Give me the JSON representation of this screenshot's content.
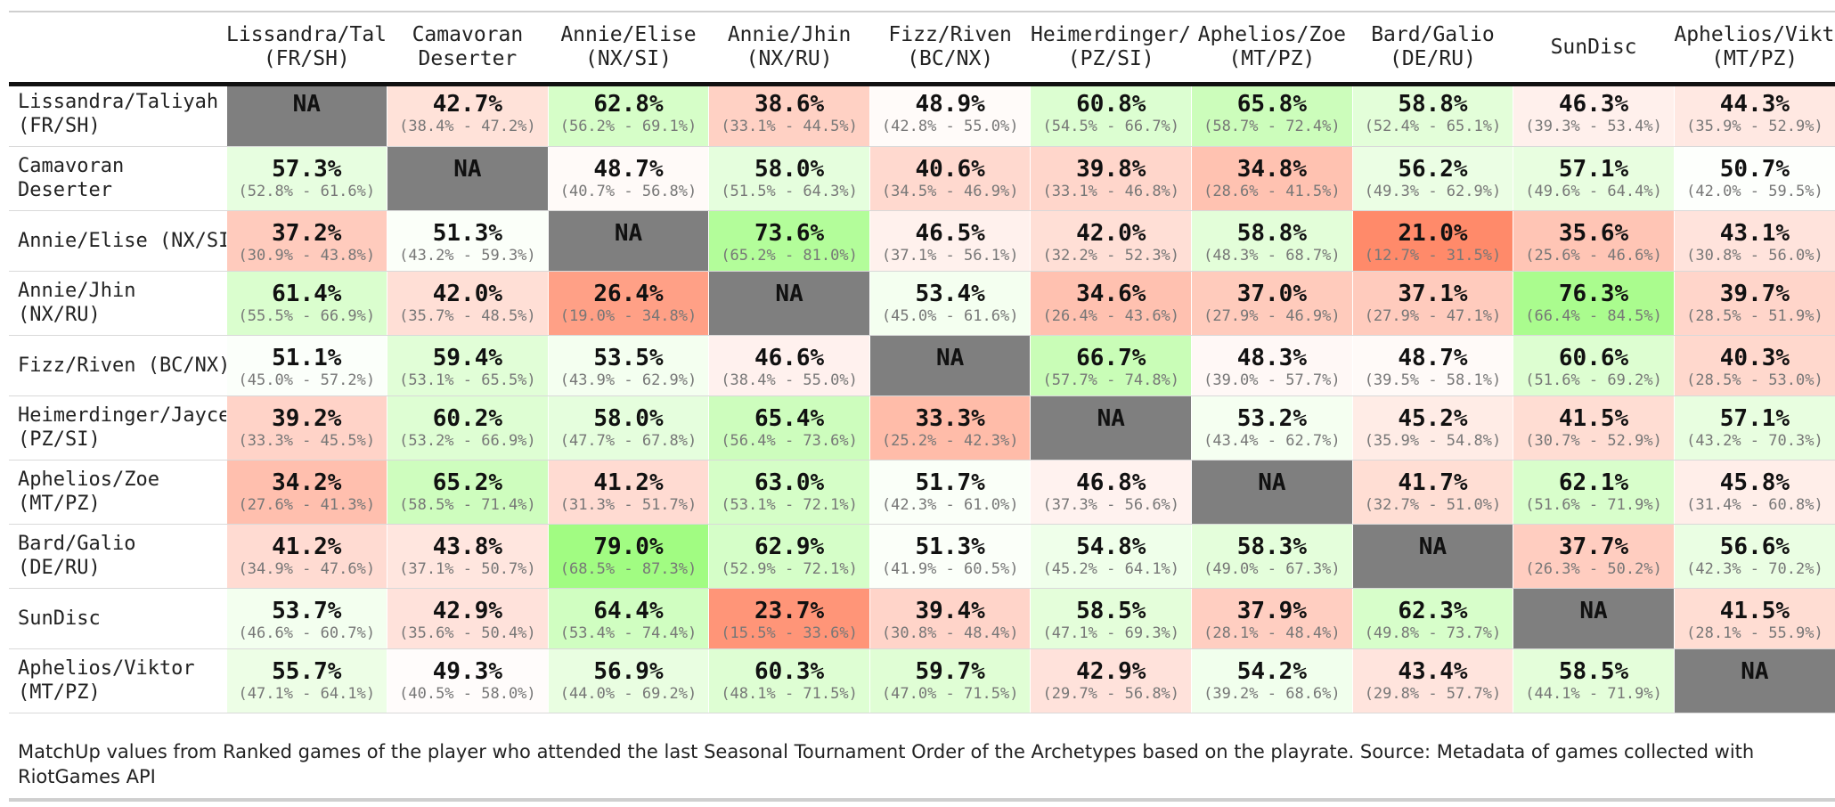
{
  "chart_data": {
    "type": "table",
    "title": "",
    "columns": [
      {
        "line1": "Lissandra/Taliyah",
        "line2": "(FR/SH)"
      },
      {
        "line1": "Camavoran",
        "line2": "Deserter"
      },
      {
        "line1": "Annie/Elise",
        "line2": "(NX/SI)"
      },
      {
        "line1": "Annie/Jhin",
        "line2": "(NX/RU)"
      },
      {
        "line1": "Fizz/Riven",
        "line2": "(BC/NX)"
      },
      {
        "line1": "Heimerdinger/Jayce",
        "line2": "(PZ/SI)"
      },
      {
        "line1": "Aphelios/Zoe",
        "line2": "(MT/PZ)"
      },
      {
        "line1": "Bard/Galio",
        "line2": "(DE/RU)"
      },
      {
        "line1": "SunDisc",
        "line2": ""
      },
      {
        "line1": "Aphelios/Viktor",
        "line2": "(MT/PZ)"
      }
    ],
    "rows": [
      {
        "label": [
          "Lissandra/Taliyah",
          "(FR/SH)"
        ],
        "cells": [
          {
            "value": null,
            "text": "NA",
            "ci": ""
          },
          {
            "value": 42.7,
            "text": "42.7%",
            "ci": "(38.4% - 47.2%)"
          },
          {
            "value": 62.8,
            "text": "62.8%",
            "ci": "(56.2% - 69.1%)"
          },
          {
            "value": 38.6,
            "text": "38.6%",
            "ci": "(33.1% - 44.5%)"
          },
          {
            "value": 48.9,
            "text": "48.9%",
            "ci": "(42.8% - 55.0%)"
          },
          {
            "value": 60.8,
            "text": "60.8%",
            "ci": "(54.5% - 66.7%)"
          },
          {
            "value": 65.8,
            "text": "65.8%",
            "ci": "(58.7% - 72.4%)"
          },
          {
            "value": 58.8,
            "text": "58.8%",
            "ci": "(52.4% - 65.1%)"
          },
          {
            "value": 46.3,
            "text": "46.3%",
            "ci": "(39.3% - 53.4%)"
          },
          {
            "value": 44.3,
            "text": "44.3%",
            "ci": "(35.9% - 52.9%)"
          }
        ]
      },
      {
        "label": [
          "Camavoran",
          "Deserter"
        ],
        "cells": [
          {
            "value": 57.3,
            "text": "57.3%",
            "ci": "(52.8% - 61.6%)"
          },
          {
            "value": null,
            "text": "NA",
            "ci": ""
          },
          {
            "value": 48.7,
            "text": "48.7%",
            "ci": "(40.7% - 56.8%)"
          },
          {
            "value": 58.0,
            "text": "58.0%",
            "ci": "(51.5% - 64.3%)"
          },
          {
            "value": 40.6,
            "text": "40.6%",
            "ci": "(34.5% - 46.9%)"
          },
          {
            "value": 39.8,
            "text": "39.8%",
            "ci": "(33.1% - 46.8%)"
          },
          {
            "value": 34.8,
            "text": "34.8%",
            "ci": "(28.6% - 41.5%)"
          },
          {
            "value": 56.2,
            "text": "56.2%",
            "ci": "(49.3% - 62.9%)"
          },
          {
            "value": 57.1,
            "text": "57.1%",
            "ci": "(49.6% - 64.4%)"
          },
          {
            "value": 50.7,
            "text": "50.7%",
            "ci": "(42.0% - 59.5%)"
          }
        ]
      },
      {
        "label": [
          "Annie/Elise (NX/SI)"
        ],
        "cells": [
          {
            "value": 37.2,
            "text": "37.2%",
            "ci": "(30.9% - 43.8%)"
          },
          {
            "value": 51.3,
            "text": "51.3%",
            "ci": "(43.2% - 59.3%)"
          },
          {
            "value": null,
            "text": "NA",
            "ci": ""
          },
          {
            "value": 73.6,
            "text": "73.6%",
            "ci": "(65.2% - 81.0%)"
          },
          {
            "value": 46.5,
            "text": "46.5%",
            "ci": "(37.1% - 56.1%)"
          },
          {
            "value": 42.0,
            "text": "42.0%",
            "ci": "(32.2% - 52.3%)"
          },
          {
            "value": 58.8,
            "text": "58.8%",
            "ci": "(48.3% - 68.7%)"
          },
          {
            "value": 21.0,
            "text": "21.0%",
            "ci": "(12.7% - 31.5%)"
          },
          {
            "value": 35.6,
            "text": "35.6%",
            "ci": "(25.6% - 46.6%)"
          },
          {
            "value": 43.1,
            "text": "43.1%",
            "ci": "(30.8% - 56.0%)"
          }
        ]
      },
      {
        "label": [
          "Annie/Jhin",
          "(NX/RU)"
        ],
        "cells": [
          {
            "value": 61.4,
            "text": "61.4%",
            "ci": "(55.5% - 66.9%)"
          },
          {
            "value": 42.0,
            "text": "42.0%",
            "ci": "(35.7% - 48.5%)"
          },
          {
            "value": 26.4,
            "text": "26.4%",
            "ci": "(19.0% - 34.8%)"
          },
          {
            "value": null,
            "text": "NA",
            "ci": ""
          },
          {
            "value": 53.4,
            "text": "53.4%",
            "ci": "(45.0% - 61.6%)"
          },
          {
            "value": 34.6,
            "text": "34.6%",
            "ci": "(26.4% - 43.6%)"
          },
          {
            "value": 37.0,
            "text": "37.0%",
            "ci": "(27.9% - 46.9%)"
          },
          {
            "value": 37.1,
            "text": "37.1%",
            "ci": "(27.9% - 47.1%)"
          },
          {
            "value": 76.3,
            "text": "76.3%",
            "ci": "(66.4% - 84.5%)"
          },
          {
            "value": 39.7,
            "text": "39.7%",
            "ci": "(28.5% - 51.9%)"
          }
        ]
      },
      {
        "label": [
          "Fizz/Riven (BC/NX)"
        ],
        "cells": [
          {
            "value": 51.1,
            "text": "51.1%",
            "ci": "(45.0% - 57.2%)"
          },
          {
            "value": 59.4,
            "text": "59.4%",
            "ci": "(53.1% - 65.5%)"
          },
          {
            "value": 53.5,
            "text": "53.5%",
            "ci": "(43.9% - 62.9%)"
          },
          {
            "value": 46.6,
            "text": "46.6%",
            "ci": "(38.4% - 55.0%)"
          },
          {
            "value": null,
            "text": "NA",
            "ci": ""
          },
          {
            "value": 66.7,
            "text": "66.7%",
            "ci": "(57.7% - 74.8%)"
          },
          {
            "value": 48.3,
            "text": "48.3%",
            "ci": "(39.0% - 57.7%)"
          },
          {
            "value": 48.7,
            "text": "48.7%",
            "ci": "(39.5% - 58.1%)"
          },
          {
            "value": 60.6,
            "text": "60.6%",
            "ci": "(51.6% - 69.2%)"
          },
          {
            "value": 40.3,
            "text": "40.3%",
            "ci": "(28.5% - 53.0%)"
          }
        ]
      },
      {
        "label": [
          "Heimerdinger/Jayce",
          "(PZ/SI)"
        ],
        "cells": [
          {
            "value": 39.2,
            "text": "39.2%",
            "ci": "(33.3% - 45.5%)"
          },
          {
            "value": 60.2,
            "text": "60.2%",
            "ci": "(53.2% - 66.9%)"
          },
          {
            "value": 58.0,
            "text": "58.0%",
            "ci": "(47.7% - 67.8%)"
          },
          {
            "value": 65.4,
            "text": "65.4%",
            "ci": "(56.4% - 73.6%)"
          },
          {
            "value": 33.3,
            "text": "33.3%",
            "ci": "(25.2% - 42.3%)"
          },
          {
            "value": null,
            "text": "NA",
            "ci": ""
          },
          {
            "value": 53.2,
            "text": "53.2%",
            "ci": "(43.4% - 62.7%)"
          },
          {
            "value": 45.2,
            "text": "45.2%",
            "ci": "(35.9% - 54.8%)"
          },
          {
            "value": 41.5,
            "text": "41.5%",
            "ci": "(30.7% - 52.9%)"
          },
          {
            "value": 57.1,
            "text": "57.1%",
            "ci": "(43.2% - 70.3%)"
          }
        ]
      },
      {
        "label": [
          "Aphelios/Zoe",
          "(MT/PZ)"
        ],
        "cells": [
          {
            "value": 34.2,
            "text": "34.2%",
            "ci": "(27.6% - 41.3%)"
          },
          {
            "value": 65.2,
            "text": "65.2%",
            "ci": "(58.5% - 71.4%)"
          },
          {
            "value": 41.2,
            "text": "41.2%",
            "ci": "(31.3% - 51.7%)"
          },
          {
            "value": 63.0,
            "text": "63.0%",
            "ci": "(53.1% - 72.1%)"
          },
          {
            "value": 51.7,
            "text": "51.7%",
            "ci": "(42.3% - 61.0%)"
          },
          {
            "value": 46.8,
            "text": "46.8%",
            "ci": "(37.3% - 56.6%)"
          },
          {
            "value": null,
            "text": "NA",
            "ci": ""
          },
          {
            "value": 41.7,
            "text": "41.7%",
            "ci": "(32.7% - 51.0%)"
          },
          {
            "value": 62.1,
            "text": "62.1%",
            "ci": "(51.6% - 71.9%)"
          },
          {
            "value": 45.8,
            "text": "45.8%",
            "ci": "(31.4% - 60.8%)"
          }
        ]
      },
      {
        "label": [
          "Bard/Galio",
          "(DE/RU)"
        ],
        "cells": [
          {
            "value": 41.2,
            "text": "41.2%",
            "ci": "(34.9% - 47.6%)"
          },
          {
            "value": 43.8,
            "text": "43.8%",
            "ci": "(37.1% - 50.7%)"
          },
          {
            "value": 79.0,
            "text": "79.0%",
            "ci": "(68.5% - 87.3%)"
          },
          {
            "value": 62.9,
            "text": "62.9%",
            "ci": "(52.9% - 72.1%)"
          },
          {
            "value": 51.3,
            "text": "51.3%",
            "ci": "(41.9% - 60.5%)"
          },
          {
            "value": 54.8,
            "text": "54.8%",
            "ci": "(45.2% - 64.1%)"
          },
          {
            "value": 58.3,
            "text": "58.3%",
            "ci": "(49.0% - 67.3%)"
          },
          {
            "value": null,
            "text": "NA",
            "ci": ""
          },
          {
            "value": 37.7,
            "text": "37.7%",
            "ci": "(26.3% - 50.2%)"
          },
          {
            "value": 56.6,
            "text": "56.6%",
            "ci": "(42.3% - 70.2%)"
          }
        ]
      },
      {
        "label": [
          "SunDisc"
        ],
        "cells": [
          {
            "value": 53.7,
            "text": "53.7%",
            "ci": "(46.6% - 60.7%)"
          },
          {
            "value": 42.9,
            "text": "42.9%",
            "ci": "(35.6% - 50.4%)"
          },
          {
            "value": 64.4,
            "text": "64.4%",
            "ci": "(53.4% - 74.4%)"
          },
          {
            "value": 23.7,
            "text": "23.7%",
            "ci": "(15.5% - 33.6%)"
          },
          {
            "value": 39.4,
            "text": "39.4%",
            "ci": "(30.8% - 48.4%)"
          },
          {
            "value": 58.5,
            "text": "58.5%",
            "ci": "(47.1% - 69.3%)"
          },
          {
            "value": 37.9,
            "text": "37.9%",
            "ci": "(28.1% - 48.4%)"
          },
          {
            "value": 62.3,
            "text": "62.3%",
            "ci": "(49.8% - 73.7%)"
          },
          {
            "value": null,
            "text": "NA",
            "ci": ""
          },
          {
            "value": 41.5,
            "text": "41.5%",
            "ci": "(28.1% - 55.9%)"
          }
        ]
      },
      {
        "label": [
          "Aphelios/Viktor",
          "(MT/PZ)"
        ],
        "cells": [
          {
            "value": 55.7,
            "text": "55.7%",
            "ci": "(47.1% - 64.1%)"
          },
          {
            "value": 49.3,
            "text": "49.3%",
            "ci": "(40.5% - 58.0%)"
          },
          {
            "value": 56.9,
            "text": "56.9%",
            "ci": "(44.0% - 69.2%)"
          },
          {
            "value": 60.3,
            "text": "60.3%",
            "ci": "(48.1% - 71.5%)"
          },
          {
            "value": 59.7,
            "text": "59.7%",
            "ci": "(47.0% - 71.5%)"
          },
          {
            "value": 42.9,
            "text": "42.9%",
            "ci": "(29.7% - 56.8%)"
          },
          {
            "value": 54.2,
            "text": "54.2%",
            "ci": "(39.2% - 68.6%)"
          },
          {
            "value": 43.4,
            "text": "43.4%",
            "ci": "(29.8% - 57.7%)"
          },
          {
            "value": 58.5,
            "text": "58.5%",
            "ci": "(44.1% - 71.9%)"
          },
          {
            "value": null,
            "text": "NA",
            "ci": ""
          }
        ]
      }
    ],
    "color_scale": {
      "low": "#ff8a6a",
      "mid": "#ffffff",
      "high": "#9efc7e",
      "na": "#7f7f7f"
    }
  },
  "caption": "MatchUp values from Ranked games of the player who attended the last Seasonal Tournament Order of the Archetypes based on the playrate. Source: Metadata of games collected with RiotGames API"
}
